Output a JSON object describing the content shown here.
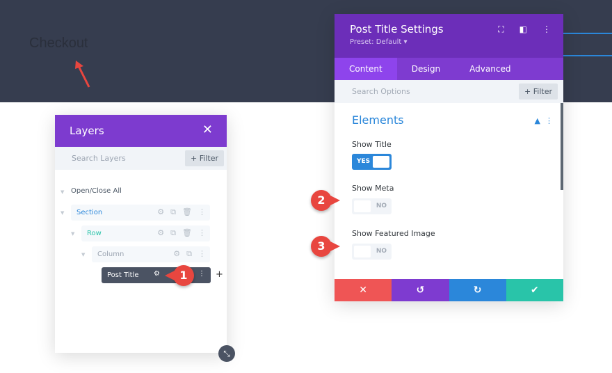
{
  "page": {
    "heading": "Checkout"
  },
  "layers": {
    "title": "Layers",
    "search_placeholder": "Search Layers",
    "filter": "+ Filter",
    "open_close": "Open/Close All",
    "nodes": [
      {
        "label": "Section",
        "color": "#2b87da"
      },
      {
        "label": "Row",
        "color": "#29c4a9"
      },
      {
        "label": "Column",
        "color": "#9aa3b0"
      },
      {
        "label": "Post Title",
        "color": "#ffffff"
      }
    ]
  },
  "settings": {
    "title": "Post Title Settings",
    "preset": "Preset: Default ▾",
    "tabs": [
      "Content",
      "Design",
      "Advanced"
    ],
    "active_tab": "Content",
    "search_placeholder": "Search Options",
    "filter": "+ Filter",
    "section": "Elements",
    "fields": [
      {
        "label": "Show Title",
        "value": "YES"
      },
      {
        "label": "Show Meta",
        "value": "NO"
      },
      {
        "label": "Show Featured Image",
        "value": "NO"
      }
    ]
  },
  "markers": [
    "1",
    "2",
    "3"
  ],
  "colors": {
    "purple": "#7d3bcf",
    "blue": "#2b87da",
    "red": "#ef5555",
    "teal": "#29c4a9",
    "dark": "#363d4f"
  }
}
